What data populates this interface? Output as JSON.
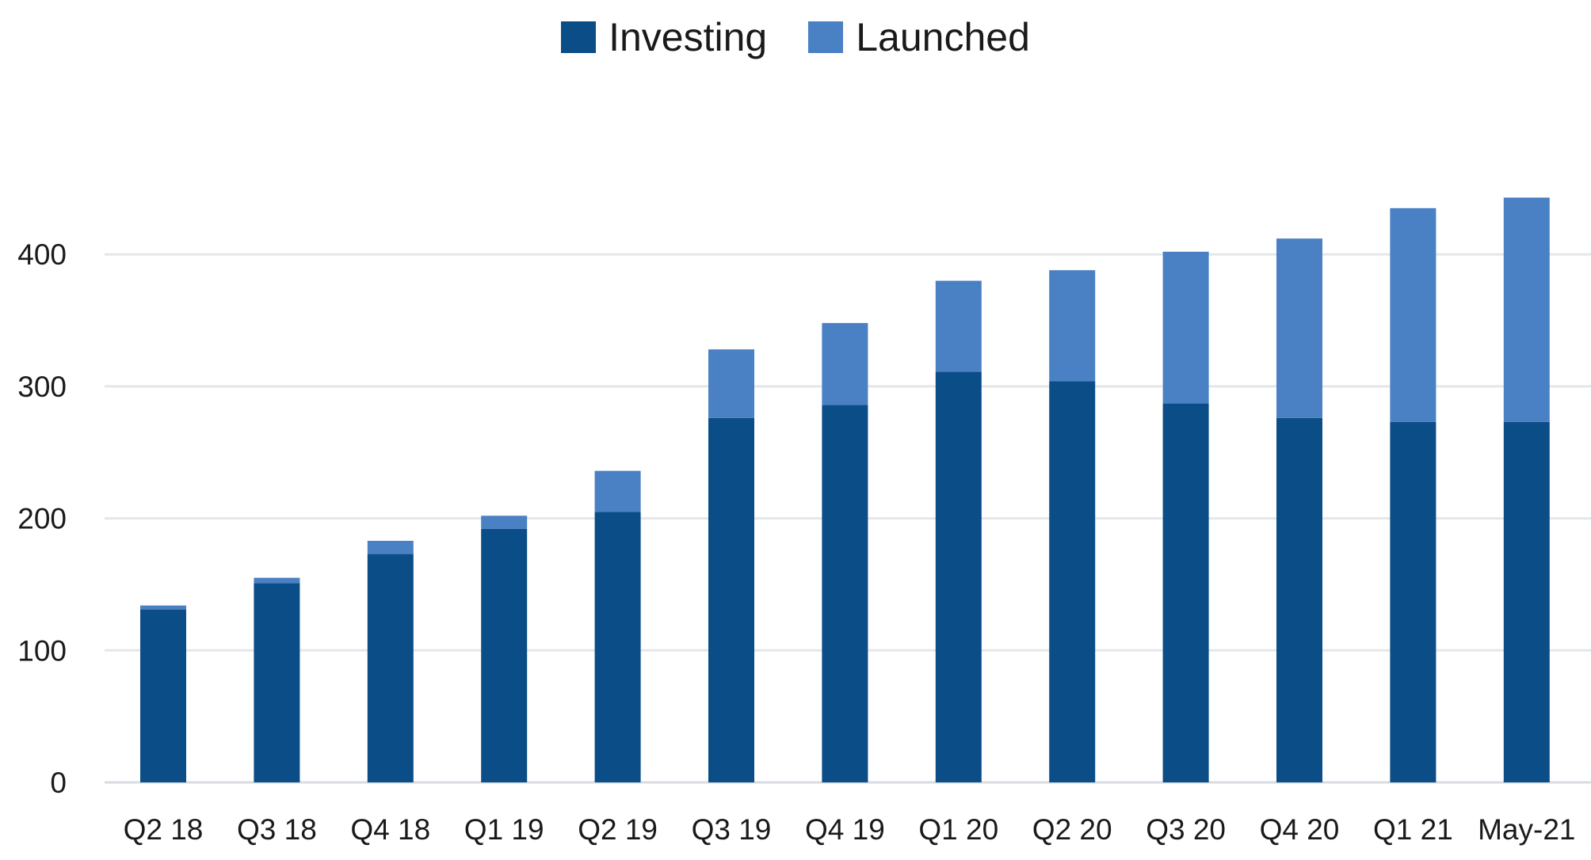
{
  "chart_data": {
    "type": "bar",
    "stacked": true,
    "title": "",
    "xlabel": "",
    "ylabel": "",
    "ylim": [
      0,
      450
    ],
    "yticks": [
      0,
      100,
      200,
      300,
      400
    ],
    "grid": true,
    "legend_position": "top-center",
    "categories": [
      "Q2 18",
      "Q3 18",
      "Q4 18",
      "Q1 19",
      "Q2 19",
      "Q3 19",
      "Q4 19",
      "Q1 20",
      "Q2 20",
      "Q3 20",
      "Q4 20",
      "Q1 21",
      "May-21"
    ],
    "series": [
      {
        "name": "Investing",
        "color": "#0b4d86",
        "values": [
          131,
          151,
          173,
          192,
          205,
          276,
          286,
          311,
          304,
          287,
          276,
          273,
          273
        ]
      },
      {
        "name": "Launched",
        "color": "#4a80c4",
        "values": [
          3,
          4,
          10,
          10,
          31,
          52,
          62,
          69,
          84,
          115,
          136,
          162,
          170
        ]
      }
    ]
  }
}
